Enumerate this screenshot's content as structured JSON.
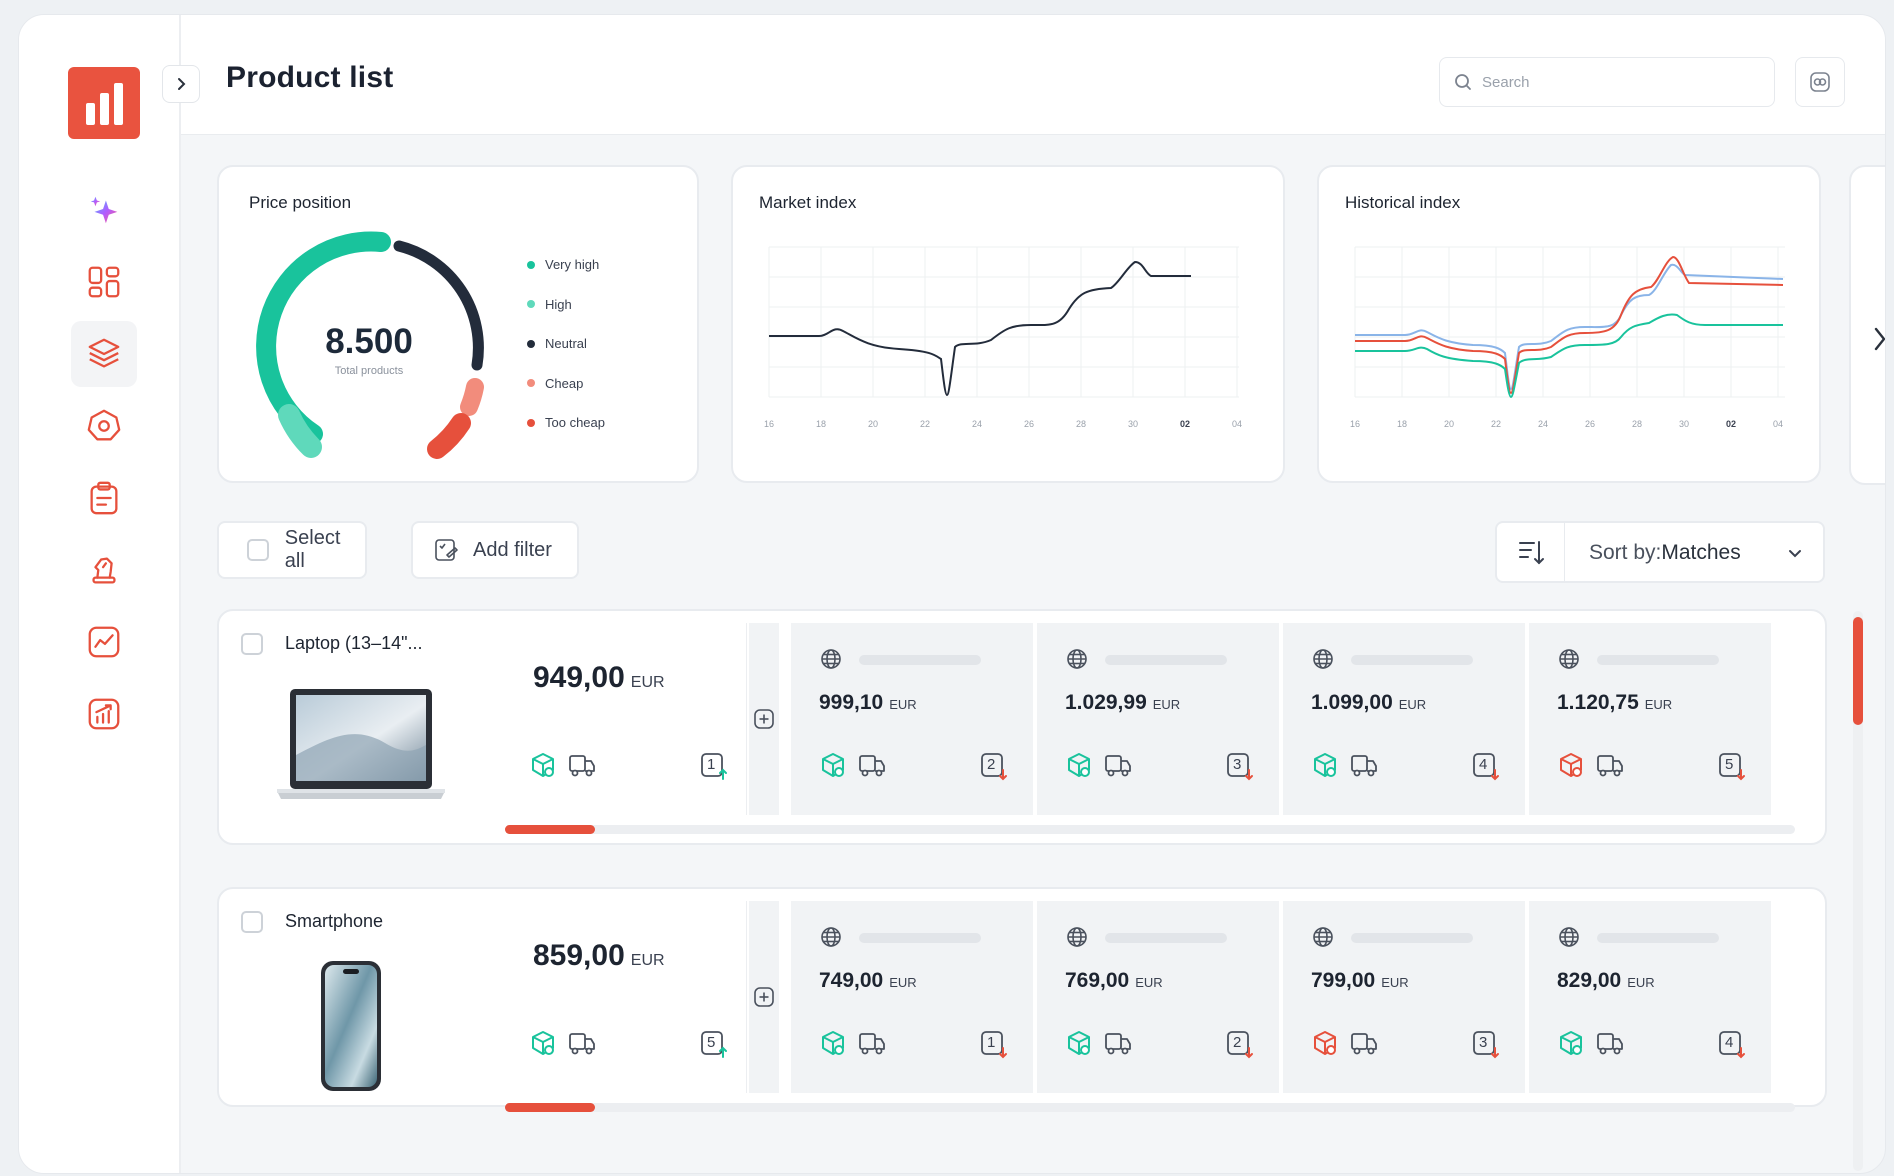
{
  "header": {
    "title": "Product list",
    "search_placeholder": "Search"
  },
  "sidebar": {
    "items": [
      {
        "icon": "sparkle-icon"
      },
      {
        "icon": "dashboard-grid-icon"
      },
      {
        "icon": "layers-icon",
        "active": true
      },
      {
        "icon": "tag-badge-icon"
      },
      {
        "icon": "clipboard-icon"
      },
      {
        "icon": "chess-knight-icon"
      },
      {
        "icon": "line-chart-icon"
      },
      {
        "icon": "growth-chart-icon"
      }
    ]
  },
  "price_position": {
    "title": "Price position",
    "value": "8.500",
    "subtitle": "Total products",
    "legend": [
      {
        "label": "Very high",
        "color": "#19c39c"
      },
      {
        "label": "High",
        "color": "#5fd9bb"
      },
      {
        "label": "Neutral",
        "color": "#232c3b"
      },
      {
        "label": "Cheap",
        "color": "#f28c7c"
      },
      {
        "label": "Too cheap",
        "color": "#e6503c"
      }
    ]
  },
  "market_index": {
    "title": "Market index",
    "x_ticks": [
      "16",
      "18",
      "20",
      "22",
      "24",
      "26",
      "28",
      "30",
      "02",
      "04"
    ]
  },
  "historical_index": {
    "title": "Historical index",
    "x_ticks": [
      "16",
      "18",
      "20",
      "22",
      "24",
      "26",
      "28",
      "30",
      "02",
      "04"
    ]
  },
  "toolbar": {
    "select_all": "Select all",
    "add_filter": "Add filter",
    "sort_prefix": "Sort by:",
    "sort_value": "Matches"
  },
  "products": [
    {
      "name": "Laptop (13–14\"...",
      "price": "949,00",
      "currency": "EUR",
      "rank": "1",
      "progress": 0.07,
      "competitors": [
        {
          "price": "999,10",
          "currency": "EUR",
          "rank": "2",
          "status": "ok"
        },
        {
          "price": "1.029,99",
          "currency": "EUR",
          "rank": "3",
          "status": "ok"
        },
        {
          "price": "1.099,00",
          "currency": "EUR",
          "rank": "4",
          "status": "ok"
        },
        {
          "price": "1.120,75",
          "currency": "EUR",
          "rank": "5",
          "status": "alert"
        }
      ]
    },
    {
      "name": "Smartphone",
      "price": "859,00",
      "currency": "EUR",
      "rank": "5",
      "progress": 0.07,
      "competitors": [
        {
          "price": "749,00",
          "currency": "EUR",
          "rank": "1",
          "status": "ok"
        },
        {
          "price": "769,00",
          "currency": "EUR",
          "rank": "2",
          "status": "ok"
        },
        {
          "price": "799,00",
          "currency": "EUR",
          "rank": "3",
          "status": "alert"
        },
        {
          "price": "829,00",
          "currency": "EUR",
          "rank": "4",
          "status": "ok"
        }
      ]
    }
  ],
  "colors": {
    "accent": "#e6503c",
    "teal": "#19c39c",
    "dark": "#232c3b"
  }
}
